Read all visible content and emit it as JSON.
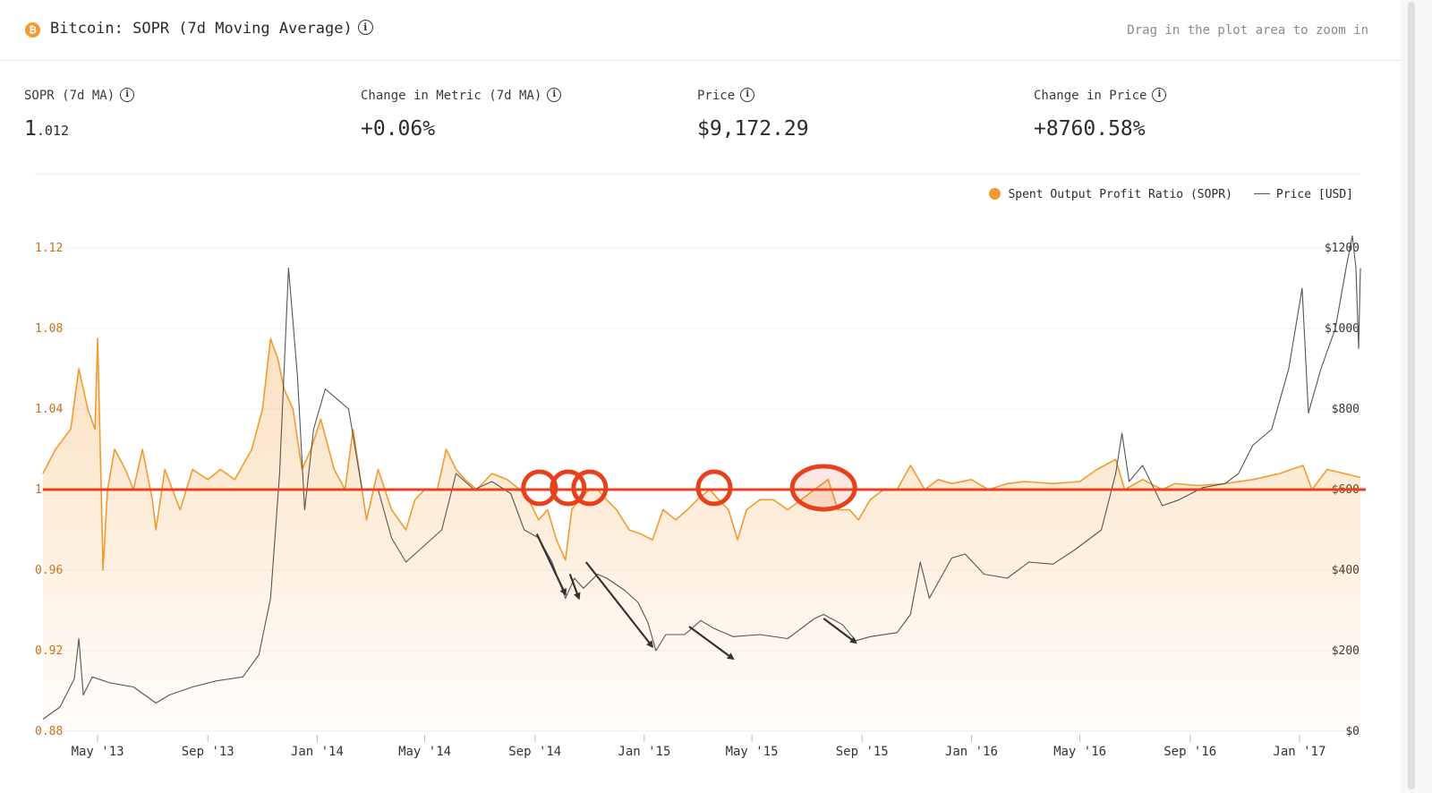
{
  "header": {
    "coin_icon": "bitcoin-icon",
    "coin_symbol": "₿",
    "title": "Bitcoin: SOPR (7d Moving Average)",
    "info_symbol": "i",
    "hint": "Drag in the plot area to zoom in"
  },
  "metrics": [
    {
      "label": "SOPR (7d MA)",
      "value_main": "1",
      "value_small": ".012"
    },
    {
      "label": "Change in Metric (7d MA)",
      "value_main": "+0.06%"
    },
    {
      "label": "Price",
      "value_main": "$9,172.29"
    },
    {
      "label": "Change in Price",
      "value_main": "+8760.58%"
    }
  ],
  "colors": {
    "sopr": "#f39a2f",
    "price": "#555555",
    "baseline": "#e8401c",
    "annotation": "#e8401c",
    "arrow": "#333333"
  },
  "chart_data": {
    "type": "line",
    "legend": [
      {
        "name": "Spent Output Profit Ratio (SOPR)",
        "style": "orange-dot"
      },
      {
        "name": "Price [USD]",
        "style": "gray-line"
      }
    ],
    "legend_position": "top-right",
    "x_ticks": [
      "May '13",
      "Sep '13",
      "Jan '14",
      "May '14",
      "Sep '14",
      "Jan '15",
      "May '15",
      "Sep '15",
      "Jan '16",
      "May '16",
      "Sep '16",
      "Jan '17"
    ],
    "y_left": {
      "ticks": [
        0.88,
        0.92,
        0.96,
        1,
        1.04,
        1.08,
        1.12
      ],
      "tick_labels": [
        "0.88",
        "0.92",
        "0.96",
        "1",
        "1.04",
        "1.08",
        "1.12"
      ],
      "range": [
        0.88,
        1.12
      ]
    },
    "y_right": {
      "ticks": [
        0,
        200,
        400,
        600,
        800,
        1000,
        1200
      ],
      "tick_labels": [
        "$0",
        "$200",
        "$400",
        "$600",
        "$800",
        "$1000",
        "$1200"
      ],
      "range": [
        0,
        1200
      ]
    },
    "x_range": [
      "2013-03-01",
      "2017-03-10"
    ],
    "grid": true,
    "reference_line": {
      "value": 1
    },
    "series": [
      {
        "name": "Spent Output Profit Ratio (SOPR)",
        "axis": "left",
        "points": [
          [
            "2013-03-01",
            1.008
          ],
          [
            "2013-03-15",
            1.02
          ],
          [
            "2013-04-01",
            1.03
          ],
          [
            "2013-04-10",
            1.06
          ],
          [
            "2013-04-20",
            1.04
          ],
          [
            "2013-04-28",
            1.03
          ],
          [
            "2013-05-01",
            1.075
          ],
          [
            "2013-05-05",
            1.0
          ],
          [
            "2013-05-07",
            0.96
          ],
          [
            "2013-05-12",
            1.0
          ],
          [
            "2013-05-20",
            1.02
          ],
          [
            "2013-06-01",
            1.01
          ],
          [
            "2013-06-10",
            1.0
          ],
          [
            "2013-06-20",
            1.02
          ],
          [
            "2013-07-01",
            0.995
          ],
          [
            "2013-07-05",
            0.98
          ],
          [
            "2013-07-15",
            1.01
          ],
          [
            "2013-08-01",
            0.99
          ],
          [
            "2013-08-15",
            1.01
          ],
          [
            "2013-09-01",
            1.005
          ],
          [
            "2013-09-15",
            1.01
          ],
          [
            "2013-10-01",
            1.005
          ],
          [
            "2013-10-20",
            1.02
          ],
          [
            "2013-11-01",
            1.04
          ],
          [
            "2013-11-10",
            1.075
          ],
          [
            "2013-11-18",
            1.065
          ],
          [
            "2013-11-25",
            1.05
          ],
          [
            "2013-12-05",
            1.04
          ],
          [
            "2013-12-15",
            1.01
          ],
          [
            "2013-12-25",
            1.02
          ],
          [
            "2014-01-05",
            1.035
          ],
          [
            "2014-01-20",
            1.01
          ],
          [
            "2014-02-01",
            1.0
          ],
          [
            "2014-02-10",
            1.03
          ],
          [
            "2014-02-25",
            0.985
          ],
          [
            "2014-03-10",
            1.01
          ],
          [
            "2014-03-25",
            0.99
          ],
          [
            "2014-04-10",
            0.98
          ],
          [
            "2014-04-20",
            0.995
          ],
          [
            "2014-05-01",
            1.0
          ],
          [
            "2014-05-15",
            1.0
          ],
          [
            "2014-05-25",
            1.02
          ],
          [
            "2014-06-05",
            1.01
          ],
          [
            "2014-06-15",
            1.005
          ],
          [
            "2014-06-28",
            1.0
          ],
          [
            "2014-07-15",
            1.008
          ],
          [
            "2014-08-01",
            1.005
          ],
          [
            "2014-08-15",
            1.0
          ],
          [
            "2014-08-25",
            0.995
          ],
          [
            "2014-09-05",
            0.985
          ],
          [
            "2014-09-15",
            0.99
          ],
          [
            "2014-09-25",
            0.975
          ],
          [
            "2014-10-05",
            0.965
          ],
          [
            "2014-10-12",
            0.99
          ],
          [
            "2014-10-20",
            0.995
          ],
          [
            "2014-11-01",
            1.0
          ],
          [
            "2014-11-10",
            1.0
          ],
          [
            "2014-11-20",
            0.995
          ],
          [
            "2014-12-01",
            0.99
          ],
          [
            "2014-12-15",
            0.98
          ],
          [
            "2014-12-28",
            0.978
          ],
          [
            "2015-01-10",
            0.975
          ],
          [
            "2015-01-22",
            0.99
          ],
          [
            "2015-02-05",
            0.985
          ],
          [
            "2015-02-18",
            0.99
          ],
          [
            "2015-03-01",
            0.995
          ],
          [
            "2015-03-15",
            1.0
          ],
          [
            "2015-03-25",
            0.995
          ],
          [
            "2015-04-05",
            0.99
          ],
          [
            "2015-04-15",
            0.975
          ],
          [
            "2015-04-25",
            0.99
          ],
          [
            "2015-05-10",
            0.995
          ],
          [
            "2015-05-25",
            0.995
          ],
          [
            "2015-06-10",
            0.99
          ],
          [
            "2015-06-25",
            0.995
          ],
          [
            "2015-07-10",
            1.0
          ],
          [
            "2015-07-25",
            1.005
          ],
          [
            "2015-08-05",
            0.99
          ],
          [
            "2015-08-18",
            0.99
          ],
          [
            "2015-08-28",
            0.985
          ],
          [
            "2015-09-10",
            0.995
          ],
          [
            "2015-09-25",
            1.0
          ],
          [
            "2015-10-10",
            1.0
          ],
          [
            "2015-10-25",
            1.012
          ],
          [
            "2015-11-10",
            1.0
          ],
          [
            "2015-11-25",
            1.005
          ],
          [
            "2015-12-10",
            1.003
          ],
          [
            "2016-01-01",
            1.005
          ],
          [
            "2016-01-20",
            1.0
          ],
          [
            "2016-02-10",
            1.003
          ],
          [
            "2016-03-01",
            1.004
          ],
          [
            "2016-04-01",
            1.003
          ],
          [
            "2016-05-01",
            1.004
          ],
          [
            "2016-05-20",
            1.01
          ],
          [
            "2016-06-10",
            1.015
          ],
          [
            "2016-06-20",
            1.0
          ],
          [
            "2016-07-10",
            1.005
          ],
          [
            "2016-08-01",
            1.0
          ],
          [
            "2016-08-15",
            1.003
          ],
          [
            "2016-09-10",
            1.002
          ],
          [
            "2016-10-10",
            1.003
          ],
          [
            "2016-11-10",
            1.005
          ],
          [
            "2016-12-10",
            1.008
          ],
          [
            "2017-01-05",
            1.012
          ],
          [
            "2017-01-15",
            1.0
          ],
          [
            "2017-02-01",
            1.01
          ],
          [
            "2017-02-20",
            1.008
          ],
          [
            "2017-03-10",
            1.006
          ]
        ]
      },
      {
        "name": "Price [USD]",
        "axis": "right",
        "points": [
          [
            "2013-03-01",
            30
          ],
          [
            "2013-03-20",
            60
          ],
          [
            "2013-04-05",
            130
          ],
          [
            "2013-04-10",
            230
          ],
          [
            "2013-04-15",
            90
          ],
          [
            "2013-04-25",
            135
          ],
          [
            "2013-05-15",
            120
          ],
          [
            "2013-06-10",
            110
          ],
          [
            "2013-07-05",
            70
          ],
          [
            "2013-07-20",
            90
          ],
          [
            "2013-08-15",
            110
          ],
          [
            "2013-09-10",
            125
          ],
          [
            "2013-10-10",
            135
          ],
          [
            "2013-10-28",
            190
          ],
          [
            "2013-11-10",
            330
          ],
          [
            "2013-11-20",
            640
          ],
          [
            "2013-11-30",
            1150
          ],
          [
            "2013-12-10",
            880
          ],
          [
            "2013-12-18",
            550
          ],
          [
            "2013-12-28",
            750
          ],
          [
            "2014-01-10",
            850
          ],
          [
            "2014-02-05",
            800
          ],
          [
            "2014-02-20",
            600
          ],
          [
            "2014-03-10",
            600
          ],
          [
            "2014-03-25",
            480
          ],
          [
            "2014-04-10",
            420
          ],
          [
            "2014-04-25",
            450
          ],
          [
            "2014-05-20",
            500
          ],
          [
            "2014-06-05",
            640
          ],
          [
            "2014-06-25",
            600
          ],
          [
            "2014-07-15",
            620
          ],
          [
            "2014-08-05",
            590
          ],
          [
            "2014-08-20",
            500
          ],
          [
            "2014-09-05",
            480
          ],
          [
            "2014-09-20",
            420
          ],
          [
            "2014-10-05",
            330
          ],
          [
            "2014-10-15",
            380
          ],
          [
            "2014-10-25",
            355
          ],
          [
            "2014-11-10",
            390
          ],
          [
            "2014-11-20",
            380
          ],
          [
            "2014-12-10",
            350
          ],
          [
            "2014-12-25",
            320
          ],
          [
            "2015-01-05",
            270
          ],
          [
            "2015-01-14",
            200
          ],
          [
            "2015-01-25",
            240
          ],
          [
            "2015-02-15",
            240
          ],
          [
            "2015-03-05",
            275
          ],
          [
            "2015-03-20",
            255
          ],
          [
            "2015-04-10",
            235
          ],
          [
            "2015-05-10",
            240
          ],
          [
            "2015-06-10",
            230
          ],
          [
            "2015-07-10",
            280
          ],
          [
            "2015-07-20",
            290
          ],
          [
            "2015-08-10",
            265
          ],
          [
            "2015-08-25",
            225
          ],
          [
            "2015-09-10",
            235
          ],
          [
            "2015-10-10",
            245
          ],
          [
            "2015-10-25",
            290
          ],
          [
            "2015-11-05",
            420
          ],
          [
            "2015-11-15",
            330
          ],
          [
            "2015-12-10",
            430
          ],
          [
            "2015-12-25",
            440
          ],
          [
            "2016-01-15",
            390
          ],
          [
            "2016-02-10",
            380
          ],
          [
            "2016-03-05",
            420
          ],
          [
            "2016-04-01",
            415
          ],
          [
            "2016-04-25",
            450
          ],
          [
            "2016-05-25",
            500
          ],
          [
            "2016-06-10",
            640
          ],
          [
            "2016-06-17",
            740
          ],
          [
            "2016-06-25",
            620
          ],
          [
            "2016-07-10",
            660
          ],
          [
            "2016-08-01",
            560
          ],
          [
            "2016-08-20",
            575
          ],
          [
            "2016-09-15",
            605
          ],
          [
            "2016-10-10",
            615
          ],
          [
            "2016-10-25",
            640
          ],
          [
            "2016-11-10",
            710
          ],
          [
            "2016-12-01",
            750
          ],
          [
            "2016-12-20",
            900
          ],
          [
            "2017-01-04",
            1100
          ],
          [
            "2017-01-11",
            790
          ],
          [
            "2017-01-25",
            900
          ],
          [
            "2017-02-10",
            1000
          ],
          [
            "2017-02-22",
            1150
          ],
          [
            "2017-03-01",
            1230
          ],
          [
            "2017-03-05",
            1150
          ],
          [
            "2017-03-08",
            950
          ],
          [
            "2017-03-10",
            1150
          ]
        ]
      }
    ],
    "annotations": {
      "circles_at": [
        "2014-09-06",
        "2014-10-08",
        "2014-11-01",
        "2015-03-20",
        "2015-07-20"
      ],
      "arrows": [
        {
          "from": [
            "2014-09-03",
            490
          ],
          "to": [
            "2014-10-05",
            340
          ]
        },
        {
          "from": [
            "2014-10-10",
            390
          ],
          "to": [
            "2014-10-20",
            330
          ]
        },
        {
          "from": [
            "2014-10-28",
            420
          ],
          "to": [
            "2015-01-10",
            210
          ]
        },
        {
          "from": [
            "2015-02-20",
            260
          ],
          "to": [
            "2015-04-10",
            180
          ]
        },
        {
          "from": [
            "2015-07-20",
            280
          ],
          "to": [
            "2015-08-25",
            220
          ]
        }
      ]
    }
  }
}
